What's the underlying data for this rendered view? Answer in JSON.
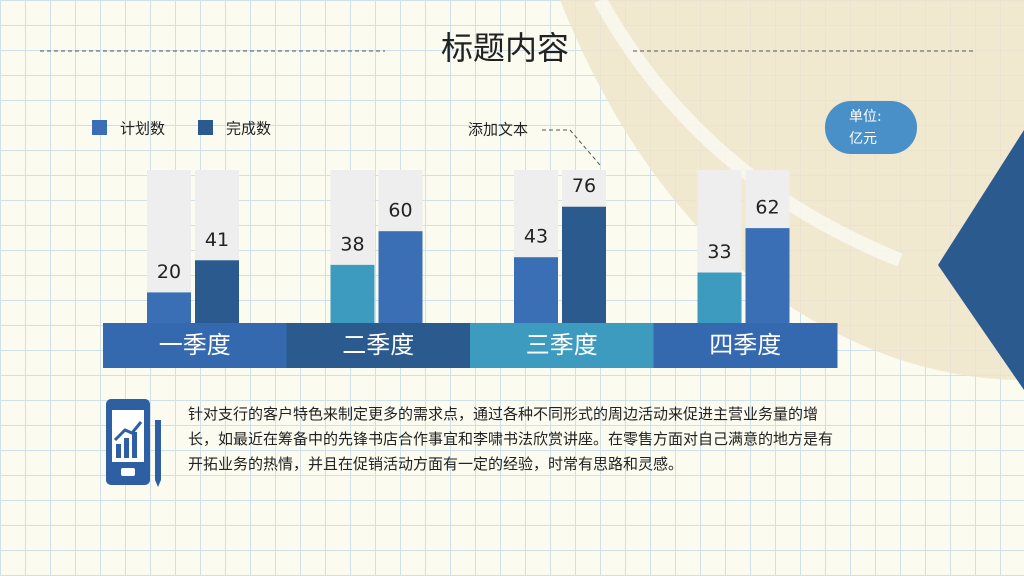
{
  "header": {
    "title": "标题内容",
    "annotation": "添加文本",
    "unit": [
      "单位:",
      "亿元"
    ]
  },
  "chart_data": {
    "type": "bar",
    "categories": [
      "一季度",
      "二季度",
      "三季度",
      "四季度"
    ],
    "category_colors": [
      "#3469b0",
      "#2a5a8e",
      "#3d9bbf",
      "#3469b0"
    ],
    "ylim": [
      0,
      100
    ],
    "series": [
      {
        "name": "计划数",
        "color": "#3a6fb5",
        "colors": [
          "#3a6fb5",
          "#3d9bbf",
          "#3a6fb5",
          "#3d9bbf"
        ],
        "values": [
          20,
          38,
          43,
          33
        ]
      },
      {
        "name": "完成数",
        "color": "#2a5a8e",
        "colors": [
          "#2a5a8e",
          "#3a6fb5",
          "#2a5a8e",
          "#3a6fb5"
        ],
        "values": [
          41,
          60,
          76,
          62
        ]
      }
    ]
  },
  "body": {
    "paragraph": "针对支行的客户特色来制定更多的需求点，通过各种不同形式的周边活动来促进主营业务量的增长，如最近在筹备中的先锋书店合作事宜和李啸书法欣赏讲座。在零售方面对自己满意的地方是有开拓业务的热情，并且在促销活动方面有一定的经验，时常有思路和灵感。"
  }
}
